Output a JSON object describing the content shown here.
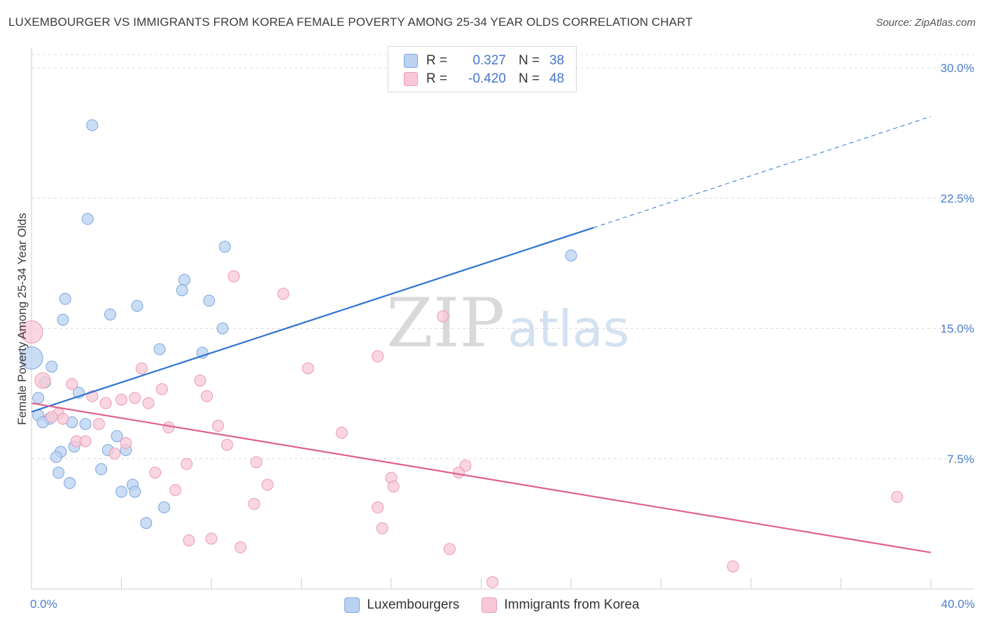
{
  "title": "LUXEMBOURGER VS IMMIGRANTS FROM KOREA FEMALE POVERTY AMONG 25-34 YEAR OLDS CORRELATION CHART",
  "source": "Source: ZipAtlas.com",
  "watermark": {
    "zip": "ZIP",
    "atlas": "atlas"
  },
  "legend": {
    "r_label": "R =",
    "n_label": "N =",
    "rows": [
      {
        "r": "0.327",
        "n": "38"
      },
      {
        "r": "-0.420",
        "n": "48"
      }
    ]
  },
  "chart_data": {
    "type": "scatter",
    "title": "LUXEMBOURGER VS IMMIGRANTS FROM KOREA FEMALE POVERTY AMONG 25-34 YEAR OLDS CORRELATION CHART",
    "xlabel": "",
    "ylabel": "Female Poverty Among 25-34 Year Olds",
    "xlim": [
      0,
      40
    ],
    "ylim": [
      0,
      31
    ],
    "x_tick_labels": [
      "0.0%",
      "40.0%"
    ],
    "y_ticks": [
      {
        "value": 7.5,
        "label": "7.5%"
      },
      {
        "value": 15.0,
        "label": "15.0%"
      },
      {
        "value": 22.5,
        "label": "22.5%"
      },
      {
        "value": 30.0,
        "label": "30.0%"
      }
    ],
    "colors": {
      "blue_fill": "#b9d2f0",
      "blue_stroke": "#7ba6e0",
      "blue_line": "#2e72d2",
      "pink_fill": "#f8c8d6",
      "pink_stroke": "#eb9ab4",
      "pink_line": "#e0608e",
      "grid": "#dcdcdc",
      "tick_text": "#4a7fcc"
    },
    "series": [
      {
        "name": "Luxembourgers",
        "r": 0.327,
        "n": 38,
        "trend": {
          "x0": 0.0,
          "y0": 10.2,
          "x1": 25.0,
          "y1": 20.8,
          "dash_to_x": 40.0,
          "dash_to_y": 27.2
        },
        "points": [
          [
            2.7,
            26.7
          ],
          [
            2.5,
            21.3
          ],
          [
            8.6,
            19.7
          ],
          [
            24.0,
            19.2
          ],
          [
            6.8,
            17.8
          ],
          [
            6.7,
            17.2
          ],
          [
            1.5,
            16.7
          ],
          [
            7.9,
            16.6
          ],
          [
            4.7,
            16.3
          ],
          [
            3.5,
            15.8
          ],
          [
            1.4,
            15.5
          ],
          [
            8.5,
            15.0
          ],
          [
            5.7,
            13.8
          ],
          [
            7.6,
            13.6
          ],
          [
            0.0,
            13.3
          ],
          [
            0.9,
            12.8
          ],
          [
            0.6,
            11.9
          ],
          [
            2.1,
            11.3
          ],
          [
            0.3,
            11.0
          ],
          [
            0.3,
            10.0
          ],
          [
            0.8,
            9.8
          ],
          [
            0.5,
            9.6
          ],
          [
            1.8,
            9.6
          ],
          [
            2.4,
            9.5
          ],
          [
            3.8,
            8.8
          ],
          [
            1.9,
            8.2
          ],
          [
            3.4,
            8.0
          ],
          [
            4.2,
            8.0
          ],
          [
            1.3,
            7.9
          ],
          [
            1.1,
            7.6
          ],
          [
            3.1,
            6.9
          ],
          [
            1.2,
            6.7
          ],
          [
            1.7,
            6.1
          ],
          [
            4.5,
            6.0
          ],
          [
            4.0,
            5.6
          ],
          [
            4.6,
            5.6
          ],
          [
            5.9,
            4.7
          ],
          [
            5.1,
            3.8
          ]
        ],
        "sizes": [
          1,
          1,
          1,
          1,
          1,
          1,
          1,
          1,
          1,
          1,
          1,
          1,
          1,
          1,
          2,
          1,
          1,
          1,
          1,
          1,
          1,
          1,
          1,
          1,
          1,
          1,
          1,
          1,
          1,
          1,
          1,
          1,
          1,
          1,
          1,
          1,
          1,
          1
        ]
      },
      {
        "name": "Immigrants from Korea",
        "r": -0.42,
        "n": 48,
        "trend": {
          "x0": 0.0,
          "y0": 10.7,
          "x1": 40.0,
          "y1": 2.1
        },
        "points": [
          [
            0.0,
            14.8
          ],
          [
            9.0,
            18.0
          ],
          [
            11.2,
            17.0
          ],
          [
            18.3,
            15.7
          ],
          [
            15.4,
            13.4
          ],
          [
            12.3,
            12.7
          ],
          [
            4.9,
            12.7
          ],
          [
            7.5,
            12.0
          ],
          [
            0.5,
            12.0
          ],
          [
            1.8,
            11.8
          ],
          [
            5.8,
            11.5
          ],
          [
            7.8,
            11.1
          ],
          [
            2.7,
            11.1
          ],
          [
            4.6,
            11.0
          ],
          [
            4.0,
            10.9
          ],
          [
            3.3,
            10.7
          ],
          [
            5.2,
            10.7
          ],
          [
            1.2,
            10.1
          ],
          [
            1.4,
            9.8
          ],
          [
            0.9,
            9.9
          ],
          [
            3.0,
            9.5
          ],
          [
            8.3,
            9.4
          ],
          [
            6.1,
            9.3
          ],
          [
            13.8,
            9.0
          ],
          [
            2.0,
            8.5
          ],
          [
            2.4,
            8.5
          ],
          [
            4.2,
            8.4
          ],
          [
            8.7,
            8.3
          ],
          [
            3.7,
            7.8
          ],
          [
            10.0,
            7.3
          ],
          [
            6.9,
            7.2
          ],
          [
            19.3,
            7.1
          ],
          [
            19.0,
            6.7
          ],
          [
            5.5,
            6.7
          ],
          [
            16.0,
            6.4
          ],
          [
            10.5,
            6.0
          ],
          [
            16.1,
            5.9
          ],
          [
            6.4,
            5.7
          ],
          [
            38.5,
            5.3
          ],
          [
            9.9,
            4.9
          ],
          [
            15.4,
            4.7
          ],
          [
            15.6,
            3.5
          ],
          [
            8.0,
            2.9
          ],
          [
            7.0,
            2.8
          ],
          [
            9.3,
            2.4
          ],
          [
            18.6,
            2.3
          ],
          [
            31.2,
            1.3
          ],
          [
            20.5,
            0.4
          ]
        ],
        "sizes": [
          2,
          1,
          1,
          1,
          1,
          1,
          1,
          1,
          1.4,
          1,
          1,
          1,
          1,
          1,
          1,
          1,
          1,
          1,
          1,
          1,
          1,
          1,
          1,
          1,
          1,
          1,
          1,
          1,
          1,
          1,
          1,
          1,
          1,
          1,
          1,
          1,
          1,
          1,
          1,
          1,
          1,
          1,
          1,
          1,
          1,
          1,
          1,
          1
        ]
      }
    ]
  }
}
